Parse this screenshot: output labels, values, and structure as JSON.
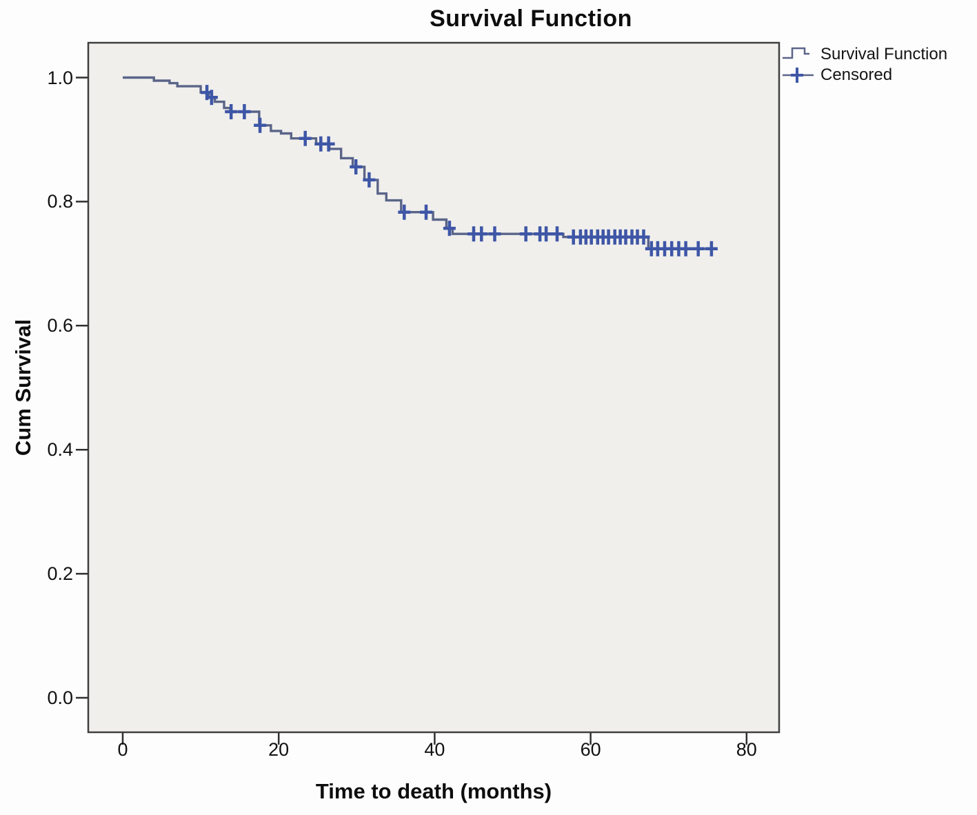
{
  "figure": {
    "title": "Survival Function",
    "x_axis_label": "Time to death (months)",
    "y_axis_label": "Cum Survival"
  },
  "legend": {
    "items": [
      {
        "label": "Survival Function",
        "symbol": "step-line"
      },
      {
        "label": "Censored",
        "symbol": "plus-cross"
      }
    ]
  },
  "colors": {
    "survival_line": "#5a6488",
    "censored_mark": "#3e56a6",
    "plot_background": "#f0efec",
    "frame_border": "#3f3f3f",
    "tick": "#2f2f2f",
    "text": "#111111"
  },
  "chart_data": {
    "type": "line",
    "subtype": "kaplan_meier_step",
    "title": "Survival Function",
    "xlabel": "Time to death (months)",
    "ylabel": "Cum Survival",
    "xlim": [
      -4.4,
      84.2
    ],
    "ylim": [
      -0.056,
      1.056
    ],
    "xticks": [
      0,
      20,
      40,
      60,
      80
    ],
    "ytick_labels": [
      "0.0",
      "0.2",
      "0.4",
      "0.6",
      "0.8",
      "1.0"
    ],
    "grid": false,
    "legend_position": "outside-top-right",
    "series": [
      {
        "name": "Survival Function",
        "style": "step-post",
        "end_time": 76.2,
        "points": [
          [
            0,
            1.0
          ],
          [
            4,
            0.995
          ],
          [
            6,
            0.991
          ],
          [
            7,
            0.986
          ],
          [
            10,
            0.976
          ],
          [
            11,
            0.968
          ],
          [
            11.8,
            0.961
          ],
          [
            13,
            0.951
          ],
          [
            13.8,
            0.945
          ],
          [
            17.5,
            0.923
          ],
          [
            19,
            0.914
          ],
          [
            20.3,
            0.91
          ],
          [
            21.6,
            0.902
          ],
          [
            24.8,
            0.893
          ],
          [
            26.5,
            0.885
          ],
          [
            28,
            0.87
          ],
          [
            29.5,
            0.856
          ],
          [
            31,
            0.835
          ],
          [
            32.7,
            0.813
          ],
          [
            33.8,
            0.802
          ],
          [
            35.7,
            0.783
          ],
          [
            39.8,
            0.771
          ],
          [
            41.5,
            0.757
          ],
          [
            42.3,
            0.748
          ],
          [
            56.5,
            0.743
          ],
          [
            67.4,
            0.724
          ]
        ]
      },
      {
        "name": "Censored",
        "style": "plus-markers-on-curve",
        "times": [
          10.8,
          11.4,
          13.9,
          15.6,
          17.6,
          23.4,
          25.4,
          26.4,
          29.9,
          31.6,
          36.1,
          38.9,
          41.9,
          45.0,
          46.0,
          47.7,
          51.7,
          53.5,
          54.3,
          55.7,
          57.8,
          58.7,
          59.4,
          60.1,
          60.9,
          61.6,
          62.3,
          63.1,
          63.8,
          64.5,
          65.3,
          66.0,
          66.8,
          67.8,
          68.6,
          69.5,
          70.4,
          71.3,
          72.2,
          73.8,
          75.5
        ]
      }
    ]
  }
}
